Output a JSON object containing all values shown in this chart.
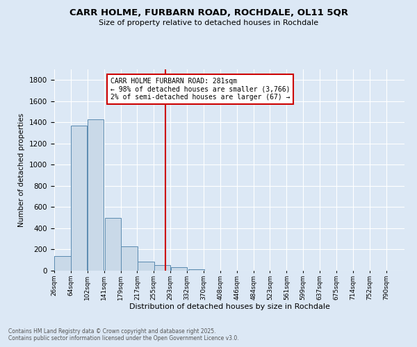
{
  "title": "CARR HOLME, FURBARN ROAD, ROCHDALE, OL11 5QR",
  "subtitle": "Size of property relative to detached houses in Rochdale",
  "xlabel": "Distribution of detached houses by size in Rochdale",
  "ylabel": "Number of detached properties",
  "bar_color": "#c9d9e8",
  "bar_edge_color": "#5a8ab0",
  "background_color": "#dce8f5",
  "grid_color": "#ffffff",
  "vline_x": 281,
  "vline_color": "#cc0000",
  "annotation_lines": [
    "CARR HOLME FURBARN ROAD: 281sqm",
    "← 98% of detached houses are smaller (3,766)",
    "2% of semi-detached houses are larger (67) →"
  ],
  "annotation_box_color": "#ffffff",
  "annotation_box_edge": "#cc0000",
  "bins_left_edges": [
    26,
    64,
    102,
    141,
    179,
    217,
    255,
    293,
    332,
    370,
    408,
    446,
    484,
    523,
    561,
    599,
    637,
    675,
    714,
    752
  ],
  "bin_width": 38,
  "bar_heights": [
    140,
    1370,
    1430,
    500,
    230,
    85,
    55,
    30,
    10,
    0,
    0,
    0,
    0,
    0,
    0,
    0,
    0,
    0,
    0,
    0
  ],
  "xtick_labels": [
    "26sqm",
    "64sqm",
    "102sqm",
    "141sqm",
    "179sqm",
    "217sqm",
    "255sqm",
    "293sqm",
    "332sqm",
    "370sqm",
    "408sqm",
    "446sqm",
    "484sqm",
    "523sqm",
    "561sqm",
    "599sqm",
    "637sqm",
    "675sqm",
    "714sqm",
    "752sqm",
    "790sqm"
  ],
  "ylim": [
    0,
    1900
  ],
  "xlim": [
    26,
    828
  ],
  "footnote1": "Contains HM Land Registry data © Crown copyright and database right 2025.",
  "footnote2": "Contains public sector information licensed under the Open Government Licence v3.0."
}
